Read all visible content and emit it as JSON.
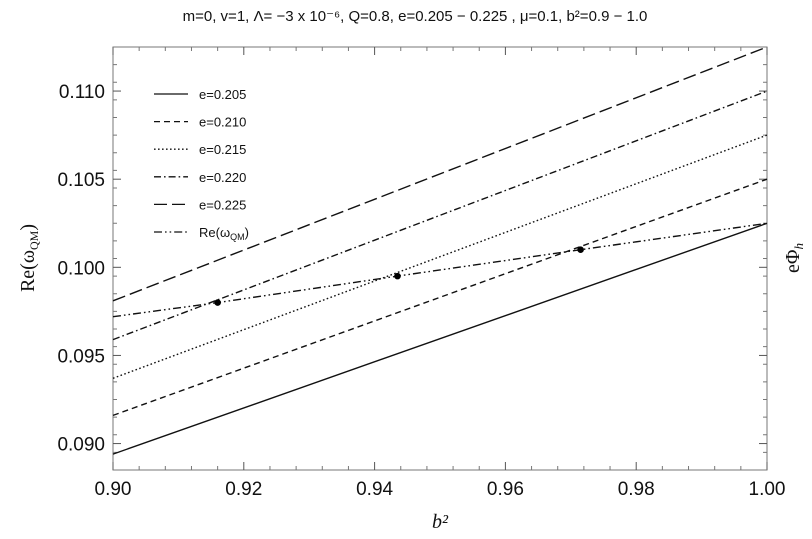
{
  "chart_data": {
    "type": "line",
    "title": "m=0, v=1, Λ= −3 x 10⁻⁶, Q=0.8, e=0.205 − 0.225 , μ=0.1, b²=0.9 − 1.0",
    "xlabel": "b²",
    "ylabel": "Re(ω_QM)",
    "ylabel_right": "eΦ_h",
    "xlim": [
      0.9,
      1.0
    ],
    "ylim": [
      0.0885,
      0.1125
    ],
    "xticks": [
      0.9,
      0.92,
      0.94,
      0.96,
      0.98,
      1.0
    ],
    "xtick_labels": [
      "0.90",
      "0.92",
      "0.94",
      "0.96",
      "0.98",
      "1.00"
    ],
    "yticks": [
      0.09,
      0.095,
      0.1,
      0.105,
      0.11
    ],
    "ytick_labels": [
      "0.090",
      "0.095",
      "0.100",
      "0.105",
      "0.110"
    ],
    "grid": false,
    "legend_position": "top-left",
    "series": [
      {
        "name": "e=0.205",
        "dash": "solid",
        "x": [
          0.9,
          1.0
        ],
        "y": [
          0.0894,
          0.1025
        ]
      },
      {
        "name": "e=0.210",
        "dash": "dashed",
        "x": [
          0.9,
          1.0
        ],
        "y": [
          0.0916,
          0.105
        ]
      },
      {
        "name": "e=0.215",
        "dash": "dotted",
        "x": [
          0.9,
          1.0
        ],
        "y": [
          0.0937,
          0.1075
        ]
      },
      {
        "name": "e=0.220",
        "dash": "dashdot",
        "x": [
          0.9,
          1.0
        ],
        "y": [
          0.0959,
          0.11
        ]
      },
      {
        "name": "e=0.225",
        "dash": "longdash",
        "x": [
          0.9,
          1.0
        ],
        "y": [
          0.0981,
          0.1125
        ]
      },
      {
        "name": "Re(ω_QM)",
        "dash": "dashdotdot",
        "x": [
          0.9,
          0.916,
          0.9435,
          0.9715,
          1.0
        ],
        "y": [
          0.0972,
          0.098,
          0.0995,
          0.101,
          0.1025
        ]
      }
    ],
    "markers": [
      {
        "x": 0.916,
        "y": 0.098
      },
      {
        "x": 0.9435,
        "y": 0.0995
      },
      {
        "x": 0.9715,
        "y": 0.101
      }
    ]
  }
}
